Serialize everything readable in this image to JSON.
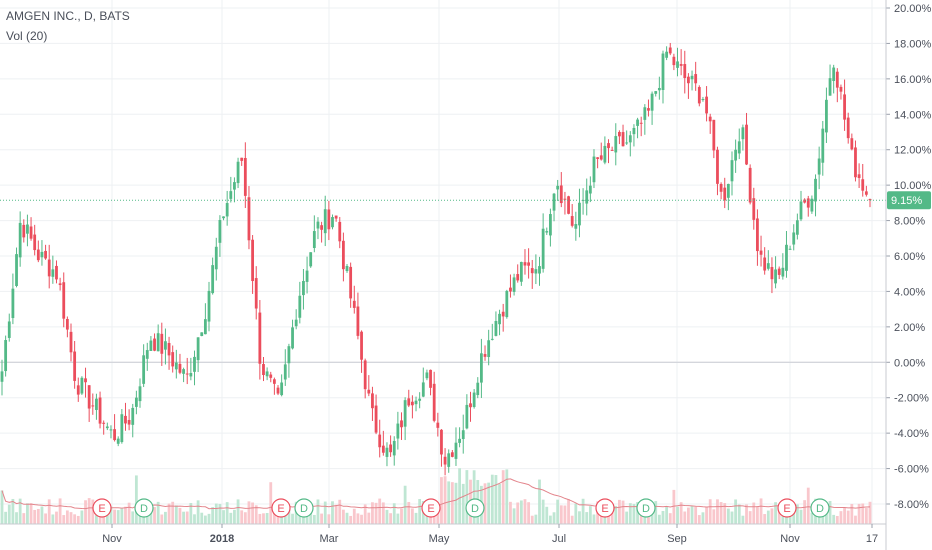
{
  "header": {
    "symbol_line": "AMGEN INC., D, BATS",
    "volume_line": "Vol (20)"
  },
  "colors": {
    "up": "#53b987",
    "down": "#eb4d5c",
    "up_volume": "#bfe6d3",
    "down_volume": "#f9c7cc",
    "volume_ma": "#e3858c",
    "last_value_bg": "#53b987",
    "grid": "#eef0f3",
    "zero_line": "#c9ccd3",
    "axis_text": "#4a4f5a"
  },
  "price_axis": {
    "labels": [
      "20.00%",
      "18.00%",
      "16.00%",
      "14.00%",
      "12.00%",
      "10.00%",
      "8.00%",
      "6.00%",
      "4.00%",
      "2.00%",
      "0.00%",
      "-2.00%",
      "-4.00%",
      "-6.00%",
      "-8.00%"
    ],
    "last_value": "9.15%"
  },
  "time_axis": {
    "labels": [
      "Nov",
      "2018",
      "Mar",
      "May",
      "Jul",
      "Sep",
      "Nov",
      "17"
    ]
  },
  "markers": [
    {
      "letter": "E",
      "type": "earnings"
    },
    {
      "letter": "D",
      "type": "dividend"
    },
    {
      "letter": "E",
      "type": "earnings"
    },
    {
      "letter": "D",
      "type": "dividend"
    },
    {
      "letter": "E",
      "type": "earnings"
    },
    {
      "letter": "D",
      "type": "dividend"
    },
    {
      "letter": "E",
      "type": "earnings"
    },
    {
      "letter": "D",
      "type": "dividend"
    },
    {
      "letter": "E",
      "type": "earnings"
    },
    {
      "letter": "D",
      "type": "dividend"
    }
  ],
  "chart_data": {
    "type": "candlestick",
    "title": "AMGEN INC., D, BATS",
    "y_unit": "% change",
    "ylim": [
      -8.5,
      20.5
    ],
    "x_ticks": [
      "Nov",
      "2018",
      "Mar",
      "May",
      "Jul",
      "Sep",
      "Nov",
      "17"
    ],
    "last_value": 9.15,
    "price_path": [
      {
        "t": "start",
        "pct": -0.5
      },
      {
        "t": "late Sep",
        "pct": 8.0
      },
      {
        "t": "early Oct",
        "pct": 6.0
      },
      {
        "t": "mid Oct",
        "pct": 5.0
      },
      {
        "t": "late Oct",
        "pct": -1.0
      },
      {
        "t": "early Nov",
        "pct": -2.5
      },
      {
        "t": "mid Nov",
        "pct": -4.2
      },
      {
        "t": "late Nov",
        "pct": -3.0
      },
      {
        "t": "early Dec",
        "pct": 1.5
      },
      {
        "t": "mid Dec",
        "pct": 0.5
      },
      {
        "t": "late Dec",
        "pct": -1.0
      },
      {
        "t": "2018",
        "pct": 3.0
      },
      {
        "t": "mid Jan",
        "pct": 8.5
      },
      {
        "t": "late Jan",
        "pct": 11.5
      },
      {
        "t": "early Feb",
        "pct": 0.0
      },
      {
        "t": "mid Feb",
        "pct": -2.5
      },
      {
        "t": "late Feb",
        "pct": 3.5
      },
      {
        "t": "Mar",
        "pct": 7.5
      },
      {
        "t": "mid Mar",
        "pct": 8.5
      },
      {
        "t": "late Mar",
        "pct": 3.0
      },
      {
        "t": "early Apr",
        "pct": -3.0
      },
      {
        "t": "mid Apr",
        "pct": -5.5
      },
      {
        "t": "late Apr",
        "pct": -2.0
      },
      {
        "t": "May",
        "pct": -1.0
      },
      {
        "t": "mid May",
        "pct": -5.5
      },
      {
        "t": "late May",
        "pct": -3.5
      },
      {
        "t": "early Jun",
        "pct": 0.5
      },
      {
        "t": "mid Jun",
        "pct": 3.0
      },
      {
        "t": "late Jun",
        "pct": 5.0
      },
      {
        "t": "Jul",
        "pct": 5.5
      },
      {
        "t": "mid Jul",
        "pct": 10.5
      },
      {
        "t": "late Jul",
        "pct": 7.5
      },
      {
        "t": "early Aug",
        "pct": 11.0
      },
      {
        "t": "mid Aug",
        "pct": 12.0
      },
      {
        "t": "late Aug",
        "pct": 12.5
      },
      {
        "t": "Sep",
        "pct": 14.0
      },
      {
        "t": "mid Sep",
        "pct": 17.5
      },
      {
        "t": "late Sep",
        "pct": 16.0
      },
      {
        "t": "early Oct",
        "pct": 15.0
      },
      {
        "t": "mid Oct",
        "pct": 9.0
      },
      {
        "t": "late Oct",
        "pct": 13.5
      },
      {
        "t": "early Nov",
        "pct": 6.0
      },
      {
        "t": "Nov",
        "pct": 4.5
      },
      {
        "t": "mid Nov",
        "pct": 8.0
      },
      {
        "t": "late Nov",
        "pct": 10.0
      },
      {
        "t": "early Dec",
        "pct": 17.5
      },
      {
        "t": "mid Dec",
        "pct": 11.5
      },
      {
        "t": "17",
        "pct": 9.15
      }
    ]
  }
}
